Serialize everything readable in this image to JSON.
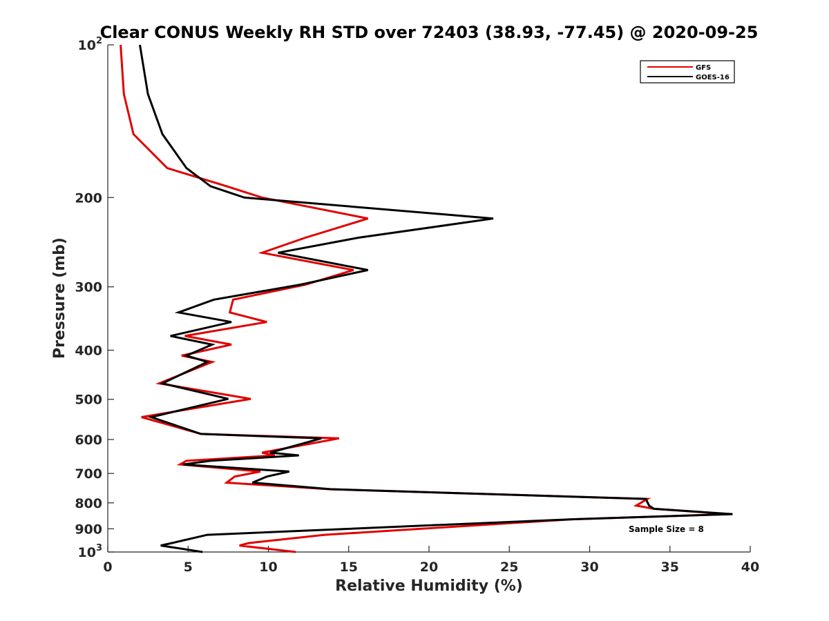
{
  "chart_data": {
    "type": "line",
    "title": "Clear CONUS Weekly RH STD over 72403 (38.93, -77.45) @ 2020-09-25",
    "xlabel": "Relative Humidity (%)",
    "ylabel": "Pressure (mb)",
    "xlim": [
      0,
      40
    ],
    "ylim": [
      100,
      1000
    ],
    "y_scale": "log",
    "y_reversed": true,
    "grid": false,
    "legend_position": "top-right",
    "x_ticks": [
      "0",
      "5",
      "10",
      "15",
      "20",
      "25",
      "30",
      "35",
      "40"
    ],
    "y_ticks": [
      {
        "value": 100,
        "base": "10",
        "exp": "2"
      },
      {
        "value": 200,
        "label": "200"
      },
      {
        "value": 300,
        "label": "300"
      },
      {
        "value": 400,
        "label": "400"
      },
      {
        "value": 500,
        "label": "500"
      },
      {
        "value": 600,
        "label": "600"
      },
      {
        "value": 700,
        "label": "700"
      },
      {
        "value": 800,
        "label": "800"
      },
      {
        "value": 900,
        "label": "900"
      },
      {
        "value": 1000,
        "base": "10",
        "exp": "3"
      }
    ],
    "annotation": "Sample Size = 8",
    "series": [
      {
        "name": "GFS",
        "color": "#e00000",
        "points": [
          [
            0.8,
            100
          ],
          [
            1.0,
            125
          ],
          [
            1.6,
            150
          ],
          [
            3.7,
            175
          ],
          [
            7.4,
            190
          ],
          [
            9.6,
            200
          ],
          [
            16.2,
            220
          ],
          [
            12.3,
            240
          ],
          [
            9.6,
            257
          ],
          [
            15.3,
            278
          ],
          [
            12.3,
            297
          ],
          [
            7.8,
            318
          ],
          [
            7.6,
            337
          ],
          [
            9.9,
            352
          ],
          [
            4.8,
            375
          ],
          [
            7.7,
            390
          ],
          [
            4.6,
            410
          ],
          [
            6.5,
            422
          ],
          [
            3.2,
            465
          ],
          [
            8.9,
            499
          ],
          [
            2.1,
            542
          ],
          [
            5.8,
            585
          ],
          [
            14.4,
            597
          ],
          [
            9.6,
            637
          ],
          [
            10.4,
            645
          ],
          [
            4.9,
            661
          ],
          [
            4.5,
            672
          ],
          [
            9.5,
            694
          ],
          [
            7.9,
            710
          ],
          [
            7.4,
            730
          ],
          [
            13.8,
            752
          ],
          [
            33.6,
            786
          ],
          [
            32.9,
            810
          ],
          [
            34.0,
            822
          ],
          [
            38.7,
            842
          ],
          [
            28.9,
            862
          ],
          [
            13.5,
            925
          ],
          [
            8.8,
            960
          ],
          [
            8.2,
            971
          ],
          [
            11.7,
            1000
          ]
        ]
      },
      {
        "name": "GOES-16",
        "color": "#000000",
        "points": [
          [
            2.0,
            100
          ],
          [
            2.5,
            125
          ],
          [
            3.4,
            150
          ],
          [
            4.9,
            175
          ],
          [
            6.4,
            190
          ],
          [
            8.5,
            200
          ],
          [
            24.0,
            220
          ],
          [
            15.6,
            240
          ],
          [
            10.6,
            257
          ],
          [
            16.2,
            278
          ],
          [
            12.0,
            297
          ],
          [
            6.6,
            318
          ],
          [
            4.4,
            337
          ],
          [
            7.7,
            352
          ],
          [
            3.9,
            375
          ],
          [
            6.5,
            390
          ],
          [
            4.9,
            410
          ],
          [
            6.2,
            422
          ],
          [
            3.4,
            465
          ],
          [
            7.5,
            499
          ],
          [
            2.7,
            542
          ],
          [
            5.8,
            585
          ],
          [
            13.3,
            597
          ],
          [
            10.1,
            637
          ],
          [
            11.9,
            645
          ],
          [
            6.4,
            661
          ],
          [
            4.7,
            672
          ],
          [
            11.3,
            694
          ],
          [
            9.9,
            710
          ],
          [
            9.0,
            730
          ],
          [
            13.9,
            752
          ],
          [
            33.5,
            786
          ],
          [
            33.7,
            810
          ],
          [
            34.0,
            822
          ],
          [
            38.9,
            842
          ],
          [
            28.9,
            862
          ],
          [
            6.2,
            925
          ],
          [
            4.0,
            960
          ],
          [
            3.3,
            971
          ],
          [
            5.9,
            1000
          ]
        ]
      }
    ]
  }
}
